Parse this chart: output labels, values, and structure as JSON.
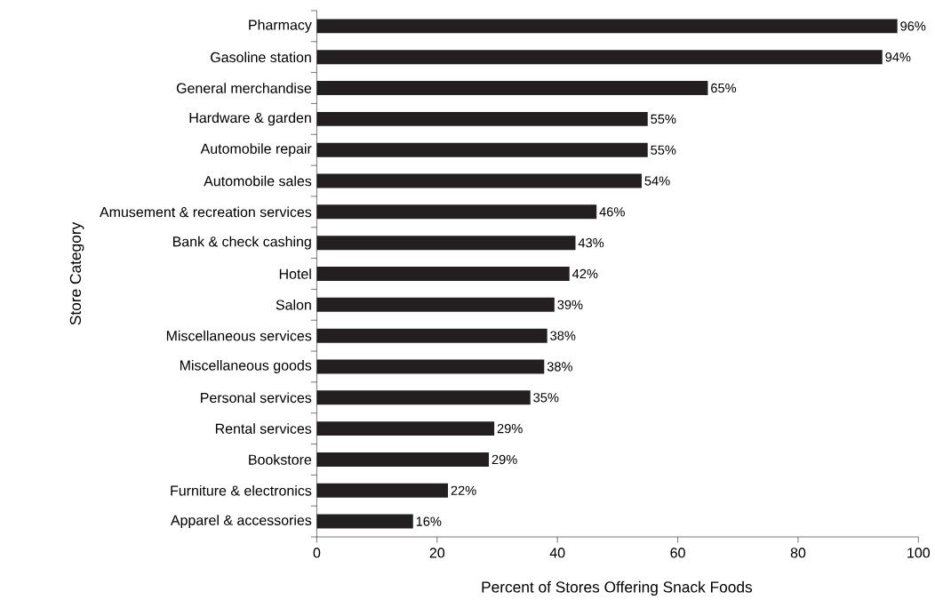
{
  "chart_data": {
    "type": "bar",
    "orientation": "horizontal",
    "xlabel": "Percent of Stores Offering Snack Foods",
    "ylabel": "Store Category",
    "categories": [
      "Pharmacy",
      "Gasoline station",
      "General merchandise",
      "Hardware & garden",
      "Automobile repair",
      "Automobile sales",
      "Amusement & recreation services",
      "Bank & check cashing",
      "Hotel",
      "Salon",
      "Miscellaneous services",
      "Miscellaneous goods",
      "Personal services",
      "Rental services",
      "Bookstore",
      "Furniture & electronics",
      "Apparel & accessories"
    ],
    "values": [
      96.5,
      94,
      65,
      55,
      55,
      54,
      46.5,
      43,
      42,
      39.5,
      38.3,
      37.8,
      35.5,
      29.5,
      28.6,
      21.8,
      16
    ],
    "value_labels": [
      "96%",
      "94%",
      "65%",
      "55%",
      "55%",
      "54%",
      "46%",
      "43%",
      "42%",
      "39%",
      "38%",
      "38%",
      "35%",
      "29%",
      "29%",
      "22%",
      "16%"
    ],
    "color": "#231f20",
    "xlim": [
      0,
      100
    ],
    "xticks": [
      0,
      20,
      40,
      60,
      80,
      100
    ]
  }
}
